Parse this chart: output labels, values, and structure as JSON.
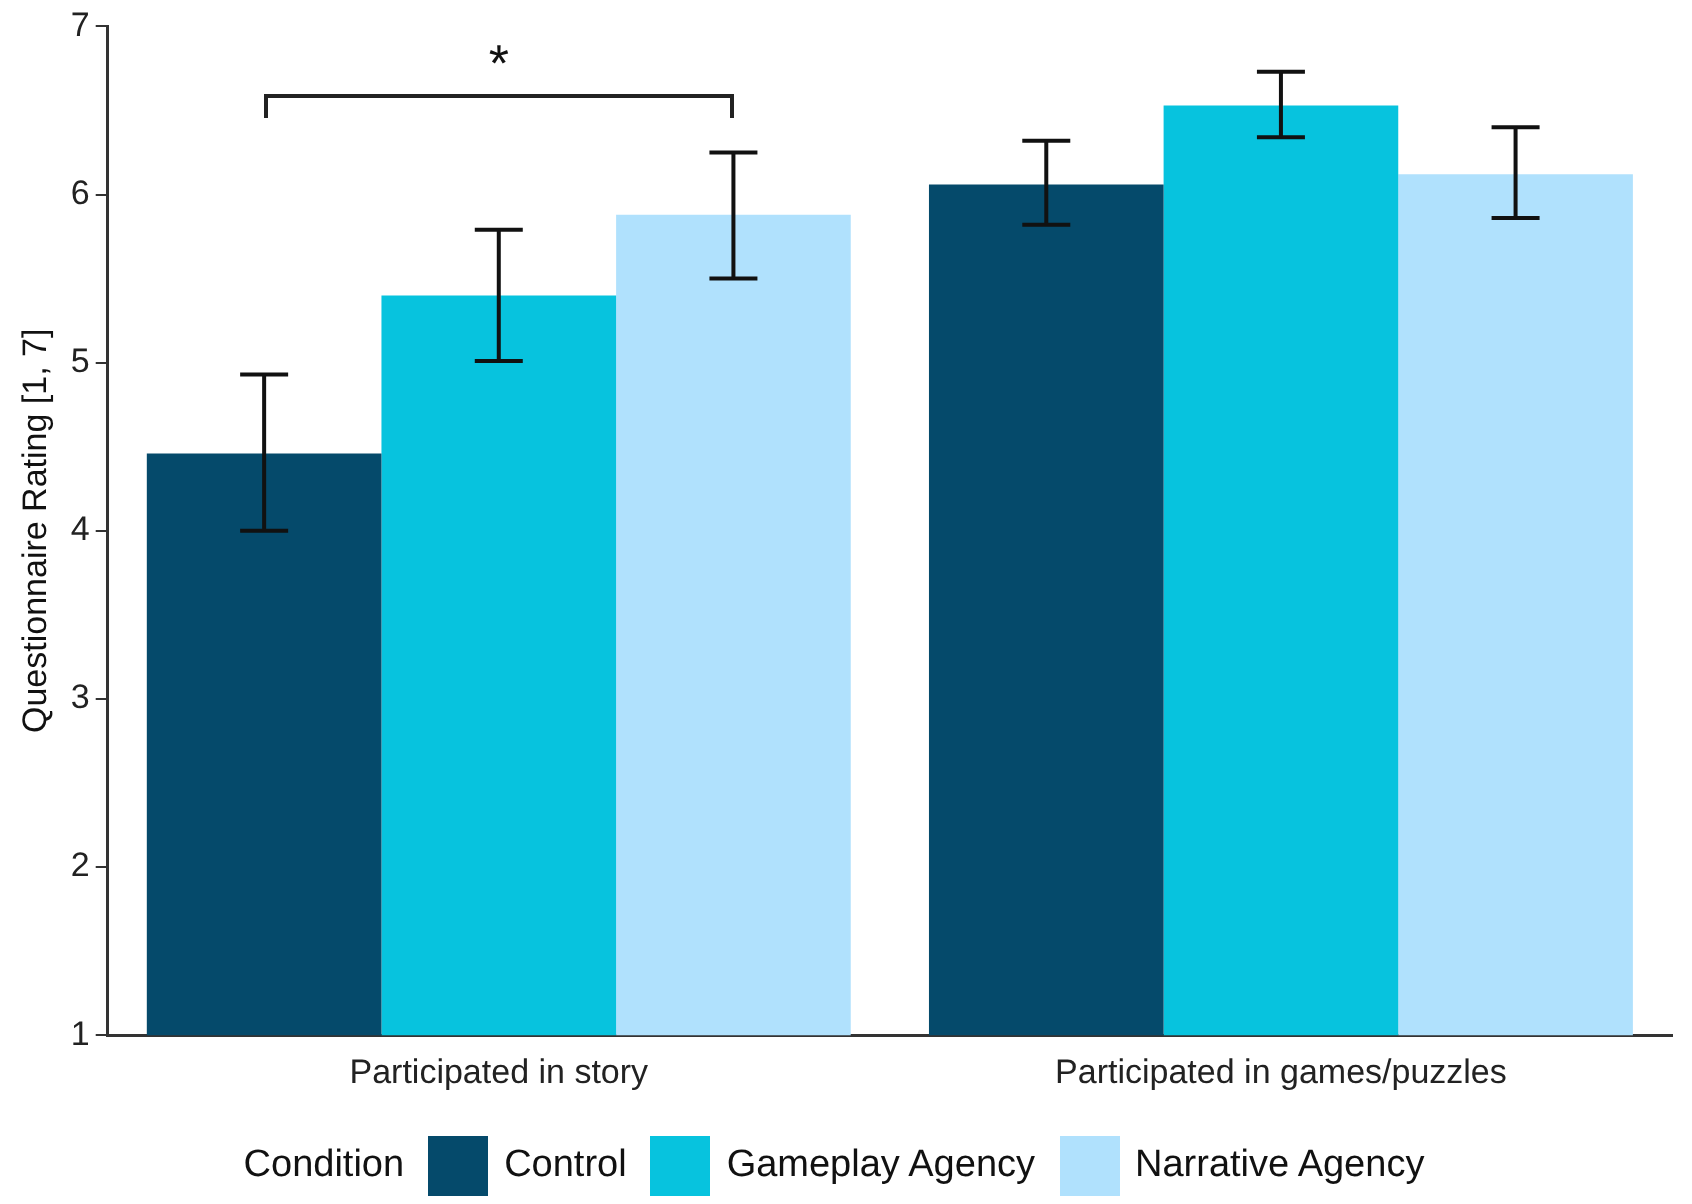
{
  "chart_data": {
    "type": "bar",
    "ylabel": "Questionnaire Rating [1, 7]",
    "legend_title": "Condition",
    "legend": "bottom",
    "grid": false,
    "categories": [
      "Participated in story",
      "Participated in games/puzzles"
    ],
    "series": [
      {
        "name": "Control",
        "color": "#054a6b",
        "values": [
          4.46,
          6.06
        ],
        "errors": [
          [
            4.0,
            4.93
          ],
          [
            5.82,
            6.32
          ]
        ]
      },
      {
        "name": "Gameplay Agency",
        "color": "#07c3de",
        "values": [
          5.4,
          6.53
        ],
        "errors": [
          [
            5.01,
            5.79
          ],
          [
            6.34,
            6.73
          ]
        ]
      },
      {
        "name": "Narrative Agency",
        "color": "#b0e1fd",
        "values": [
          5.88,
          6.12
        ],
        "errors": [
          [
            5.5,
            6.25
          ],
          [
            5.86,
            6.4
          ]
        ]
      }
    ],
    "ylim": [
      1,
      7
    ],
    "yticks": [
      1,
      2,
      3,
      4,
      5,
      6,
      7
    ],
    "annotations": [
      "*"
    ]
  }
}
